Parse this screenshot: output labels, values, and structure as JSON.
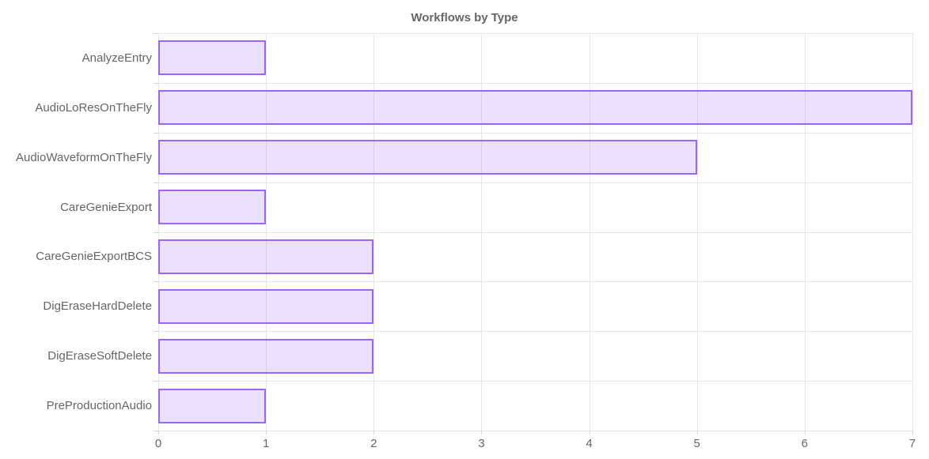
{
  "chart_data": {
    "type": "bar",
    "orientation": "horizontal",
    "title": "Workflows by Type",
    "categories": [
      "AnalyzeEntry",
      "AudioLoResOnTheFly",
      "AudioWaveformOnTheFly",
      "CareGenieExport",
      "CareGenieExportBCS",
      "DigEraseHardDelete",
      "DigEraseSoftDelete",
      "PreProductionAudio"
    ],
    "values": [
      1,
      7,
      5,
      1,
      2,
      2,
      2,
      1
    ],
    "xlabel": "",
    "ylabel": "",
    "xlim": [
      0,
      7
    ],
    "xticks": [
      "0",
      "1",
      "2",
      "3",
      "4",
      "5",
      "6",
      "7"
    ],
    "grid": true,
    "legend": false,
    "colors": {
      "bar_fill": "rgba(153, 102, 255, 0.2)",
      "bar_border": "#9966ff",
      "grid": "#e6e6e6",
      "tick": "#d4d4d4",
      "text": "#666666",
      "background": "#ffffff"
    }
  }
}
